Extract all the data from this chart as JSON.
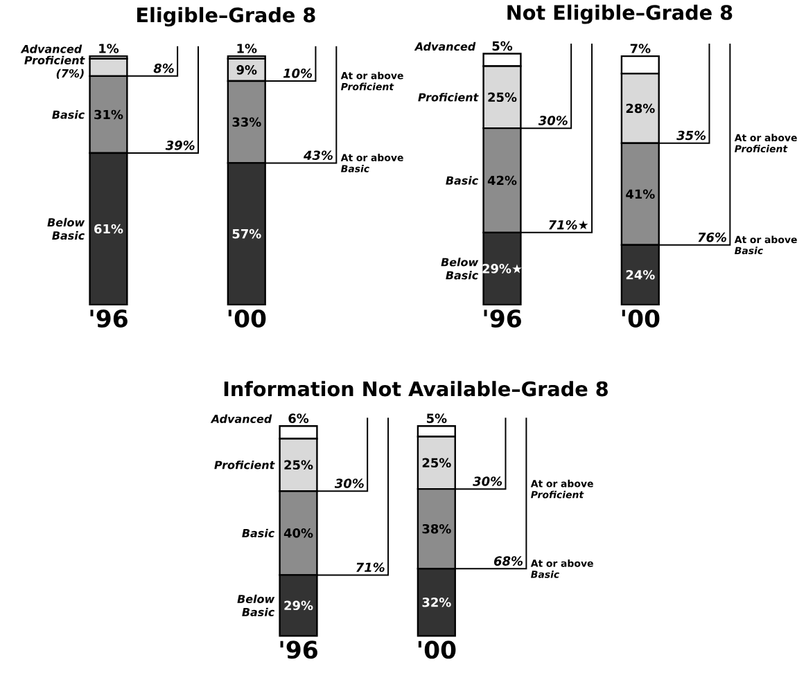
{
  "chart_data": [
    {
      "type": "bar",
      "title": "Eligible–Grade 8",
      "categories": [
        "'96",
        "'00"
      ],
      "stacked": true,
      "series": [
        {
          "name": "Below Basic",
          "color": "#333333",
          "values": [
            61,
            57
          ],
          "value_labels": [
            "61%",
            "57%"
          ]
        },
        {
          "name": "Basic",
          "color": "#8c8c8c",
          "values": [
            31,
            33
          ],
          "value_labels": [
            "31%",
            "33%"
          ]
        },
        {
          "name": "Proficient (7%)",
          "color": "#d9d9d9",
          "values": [
            7,
            9
          ],
          "value_labels": [
            null,
            "9%"
          ]
        },
        {
          "name": "Advanced",
          "color": "#ffffff",
          "values": [
            1,
            1
          ],
          "value_labels": [
            "1%",
            "1%"
          ]
        }
      ],
      "annotations": [
        "8%",
        "39%",
        "10%",
        "At or above *Proficient*",
        "43%",
        "At or above *Basic*"
      ]
    },
    {
      "type": "bar",
      "title": "Not Eligible–Grade 8",
      "categories": [
        "'96",
        "'00"
      ],
      "stacked": true,
      "series": [
        {
          "name": "Below Basic",
          "color": "#333333",
          "values": [
            29,
            24
          ],
          "value_labels": [
            "29%★",
            "24%"
          ]
        },
        {
          "name": "Basic",
          "color": "#8c8c8c",
          "values": [
            42,
            41
          ],
          "value_labels": [
            "42%",
            "41%"
          ]
        },
        {
          "name": "Proficient",
          "color": "#d9d9d9",
          "values": [
            25,
            28
          ],
          "value_labels": [
            "25%",
            "28%"
          ]
        },
        {
          "name": "Advanced",
          "color": "#ffffff",
          "values": [
            5,
            7
          ],
          "value_labels": [
            "5%",
            "7%"
          ]
        }
      ],
      "annotations": [
        "30%",
        "71%★",
        "35%",
        "At or above *Proficient*",
        "76%",
        "At or above *Basic*"
      ]
    },
    {
      "type": "bar",
      "title": "Information Not Available–Grade 8",
      "categories": [
        "'96",
        "'00"
      ],
      "stacked": true,
      "series": [
        {
          "name": "Below Basic",
          "color": "#333333",
          "values": [
            29,
            32
          ],
          "value_labels": [
            "29%",
            "32%"
          ]
        },
        {
          "name": "Basic",
          "color": "#8c8c8c",
          "values": [
            40,
            38
          ],
          "value_labels": [
            "40%",
            "38%"
          ]
        },
        {
          "name": "Proficient",
          "color": "#d9d9d9",
          "values": [
            25,
            25
          ],
          "value_labels": [
            "25%",
            "25%"
          ]
        },
        {
          "name": "Advanced",
          "color": "#ffffff",
          "values": [
            6,
            5
          ],
          "value_labels": [
            "6%",
            "5%"
          ]
        }
      ],
      "annotations": [
        "30%",
        "71%",
        "30%",
        "At or above *Proficient*",
        "68%",
        "At or above *Basic*"
      ]
    }
  ]
}
